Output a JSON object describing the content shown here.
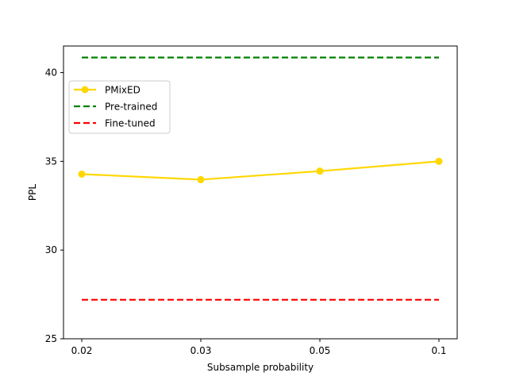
{
  "chart_data": {
    "type": "line",
    "title": "",
    "xlabel": "Subsample probability",
    "ylabel": "PPL",
    "categories": [
      "0.02",
      "0.03",
      "0.05",
      "0.1"
    ],
    "ylim": [
      25,
      41.5
    ],
    "yticks": [
      25,
      30,
      35,
      40
    ],
    "grid": false,
    "legend_position": "upper-left",
    "series": [
      {
        "name": "PMixED",
        "values": [
          34.28,
          33.97,
          34.45,
          35.0
        ],
        "color": "#FFD700",
        "style": "solid",
        "marker": "circle"
      },
      {
        "name": "Pre-trained",
        "values": [
          40.85,
          40.85,
          40.85,
          40.85
        ],
        "color": "#008000",
        "style": "dashed",
        "marker": "none"
      },
      {
        "name": "Fine-tuned",
        "values": [
          27.2,
          27.2,
          27.2,
          27.2
        ],
        "color": "#FF0000",
        "style": "dashed",
        "marker": "none"
      }
    ]
  }
}
